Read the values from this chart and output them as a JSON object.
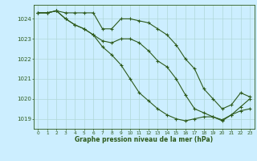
{
  "xlabel": "Graphe pression niveau de la mer (hPa)",
  "x_ticks": [
    0,
    1,
    2,
    3,
    4,
    5,
    6,
    7,
    8,
    9,
    10,
    11,
    12,
    13,
    14,
    15,
    16,
    17,
    18,
    19,
    20,
    21,
    22,
    23
  ],
  "ylim": [
    1018.5,
    1024.7
  ],
  "yticks": [
    1019,
    1020,
    1021,
    1022,
    1023,
    1024
  ],
  "background_color": "#cceeff",
  "line_color": "#2d5a1b",
  "grid_color": "#b0d8d8",
  "series": [
    [
      1024.3,
      1024.3,
      1024.4,
      1024.3,
      1024.3,
      1024.3,
      1024.3,
      1023.5,
      1023.5,
      1024.0,
      1024.0,
      1023.9,
      1023.8,
      1023.5,
      1023.2,
      1022.7,
      1022.0,
      1021.5,
      1020.5,
      1020.0,
      1019.5,
      1019.7,
      1020.3,
      1020.1
    ],
    [
      1024.3,
      1024.3,
      1024.4,
      1024.0,
      1023.7,
      1023.5,
      1023.2,
      1022.9,
      1022.8,
      1023.0,
      1023.0,
      1022.8,
      1022.4,
      1021.9,
      1021.6,
      1021.0,
      1020.2,
      1019.5,
      1019.3,
      1019.1,
      1018.9,
      1019.2,
      1019.4,
      1019.5
    ],
    [
      1024.3,
      1024.3,
      1024.4,
      1024.0,
      1023.7,
      1023.5,
      1023.2,
      1022.6,
      1022.2,
      1021.7,
      1021.0,
      1020.3,
      1019.9,
      1019.5,
      1019.2,
      1019.0,
      1018.9,
      1019.0,
      1019.1,
      1019.1,
      1018.95,
      1019.2,
      1019.6,
      1020.0
    ]
  ]
}
